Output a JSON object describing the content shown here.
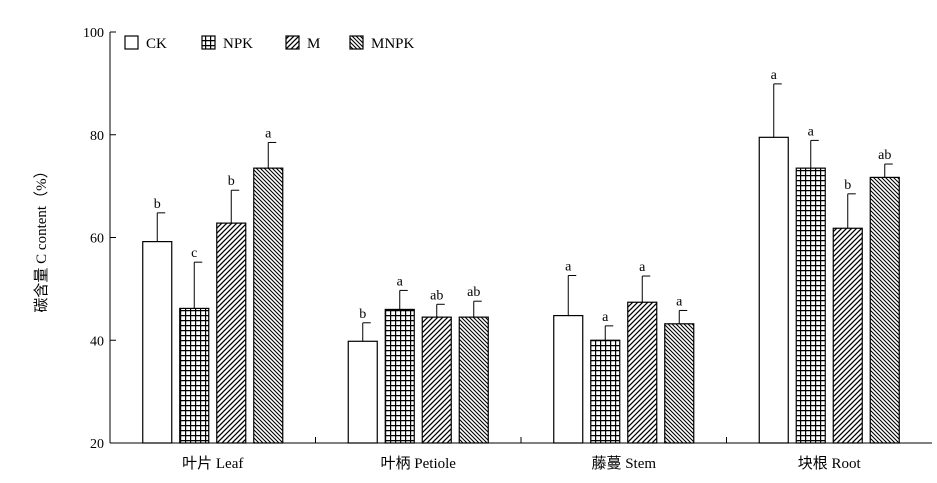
{
  "chart_data": {
    "type": "bar",
    "title": "",
    "ylabel": "碳含量 C content（%）",
    "xlabel": "",
    "ylim": [
      20,
      100
    ],
    "yticks": [
      20,
      40,
      60,
      80,
      100
    ],
    "categories": [
      "叶片 Leaf",
      "叶柄 Petiole",
      "藤蔓 Stem",
      "块根 Root"
    ],
    "series": [
      {
        "name": "CK",
        "pattern": "blank",
        "values": [
          59.2,
          39.8,
          44.8,
          79.5
        ],
        "errors": [
          5.6,
          3.6,
          7.8,
          10.4
        ],
        "significance": [
          "b",
          "b",
          "a",
          "a"
        ]
      },
      {
        "name": "NPK",
        "pattern": "grid",
        "values": [
          46.2,
          46.0,
          40.0,
          73.5
        ],
        "errors": [
          9.0,
          3.7,
          2.8,
          5.4
        ],
        "significance": [
          "c",
          "a",
          "a",
          "a"
        ]
      },
      {
        "name": "M",
        "pattern": "diagonal-up",
        "values": [
          62.8,
          44.5,
          47.4,
          61.8
        ],
        "errors": [
          6.4,
          2.5,
          5.1,
          6.7
        ],
        "significance": [
          "b",
          "ab",
          "a",
          "b"
        ]
      },
      {
        "name": "MNPK",
        "pattern": "diagonal-down",
        "values": [
          73.5,
          44.5,
          43.2,
          71.7
        ],
        "errors": [
          5.0,
          3.1,
          2.6,
          2.6
        ],
        "significance": [
          "a",
          "ab",
          "a",
          "ab"
        ]
      }
    ],
    "legend_position": "top-left",
    "grid": false
  }
}
